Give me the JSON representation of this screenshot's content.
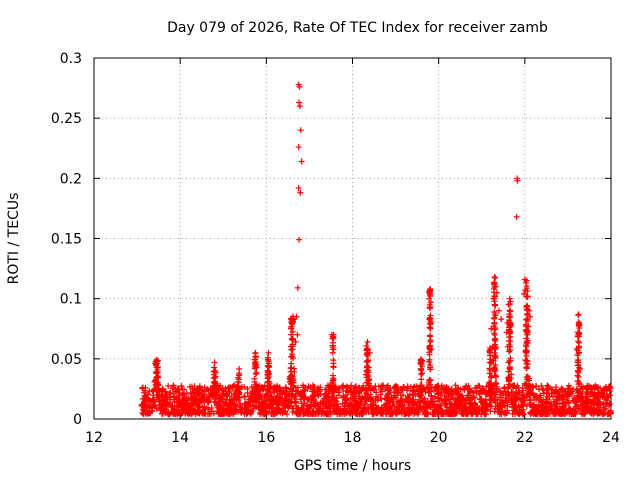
{
  "chart_data": {
    "type": "scatter",
    "title": "Day 079 of 2026, Rate Of TEC Index for receiver zamb",
    "xlabel": "GPS time / hours",
    "ylabel": "ROTI / TECUs",
    "xlim": [
      12,
      24
    ],
    "ylim": [
      0,
      0.3
    ],
    "x_ticks": [
      12,
      14,
      16,
      18,
      20,
      22,
      24
    ],
    "x_tick_labels": [
      "12",
      "14",
      "16",
      "18",
      "20",
      "22",
      "24"
    ],
    "y_ticks": [
      0,
      0.05,
      0.1,
      0.15,
      0.2,
      0.25,
      0.3
    ],
    "y_tick_labels": [
      "0",
      "0.05",
      "0.1",
      "0.15",
      "0.2",
      "0.25",
      "0.3"
    ],
    "grid": true,
    "marker": "+",
    "color": "#ff0000",
    "series": [
      {
        "name": "ROTI",
        "baseline": {
          "x_start": 13.1,
          "x_end": 24.0,
          "y_min": 0.004,
          "y_max": 0.028,
          "samples": 2600
        },
        "bursts": [
          {
            "x": 13.45,
            "width": 0.1,
            "peak": 0.049
          },
          {
            "x": 14.8,
            "width": 0.06,
            "peak": 0.047
          },
          {
            "x": 15.35,
            "width": 0.05,
            "peak": 0.042
          },
          {
            "x": 15.75,
            "width": 0.06,
            "peak": 0.055
          },
          {
            "x": 16.05,
            "width": 0.05,
            "peak": 0.055
          },
          {
            "x": 16.6,
            "width": 0.08,
            "peak": 0.087
          },
          {
            "x": 17.55,
            "width": 0.03,
            "peak": 0.07
          },
          {
            "x": 18.35,
            "width": 0.07,
            "peak": 0.064
          },
          {
            "x": 19.6,
            "width": 0.06,
            "peak": 0.05
          },
          {
            "x": 19.8,
            "width": 0.04,
            "peak": 0.108
          },
          {
            "x": 21.2,
            "width": 0.06,
            "peak": 0.06
          },
          {
            "x": 21.3,
            "width": 0.05,
            "peak": 0.118
          },
          {
            "x": 21.65,
            "width": 0.05,
            "peak": 0.1
          },
          {
            "x": 22.05,
            "width": 0.06,
            "peak": 0.116
          },
          {
            "x": 23.25,
            "width": 0.05,
            "peak": 0.087
          },
          {
            "x": 23.45,
            "width": 0.04,
            "peak": 0.03
          }
        ],
        "points": [
          {
            "x": 16.75,
            "y": 0.278
          },
          {
            "x": 16.77,
            "y": 0.276
          },
          {
            "x": 16.76,
            "y": 0.263
          },
          {
            "x": 16.78,
            "y": 0.26
          },
          {
            "x": 16.8,
            "y": 0.24
          },
          {
            "x": 16.75,
            "y": 0.226
          },
          {
            "x": 16.82,
            "y": 0.214
          },
          {
            "x": 16.75,
            "y": 0.192
          },
          {
            "x": 16.79,
            "y": 0.188
          },
          {
            "x": 16.76,
            "y": 0.149
          },
          {
            "x": 16.73,
            "y": 0.109
          },
          {
            "x": 16.7,
            "y": 0.085
          },
          {
            "x": 16.72,
            "y": 0.07
          },
          {
            "x": 16.68,
            "y": 0.064
          },
          {
            "x": 17.52,
            "y": 0.07
          },
          {
            "x": 17.56,
            "y": 0.07
          },
          {
            "x": 19.8,
            "y": 0.108
          },
          {
            "x": 19.78,
            "y": 0.1
          },
          {
            "x": 19.82,
            "y": 0.097
          },
          {
            "x": 19.81,
            "y": 0.086
          },
          {
            "x": 19.79,
            "y": 0.076
          },
          {
            "x": 19.83,
            "y": 0.058
          },
          {
            "x": 21.3,
            "y": 0.118
          },
          {
            "x": 21.32,
            "y": 0.11
          },
          {
            "x": 21.35,
            "y": 0.105
          },
          {
            "x": 21.28,
            "y": 0.1
          },
          {
            "x": 21.4,
            "y": 0.09
          },
          {
            "x": 21.45,
            "y": 0.083
          },
          {
            "x": 21.22,
            "y": 0.075
          },
          {
            "x": 21.25,
            "y": 0.06
          },
          {
            "x": 21.65,
            "y": 0.1
          },
          {
            "x": 21.62,
            "y": 0.095
          },
          {
            "x": 21.6,
            "y": 0.08
          },
          {
            "x": 21.58,
            "y": 0.072
          },
          {
            "x": 21.6,
            "y": 0.06
          },
          {
            "x": 21.62,
            "y": 0.047
          },
          {
            "x": 21.82,
            "y": 0.2
          },
          {
            "x": 21.83,
            "y": 0.198
          },
          {
            "x": 21.81,
            "y": 0.168
          },
          {
            "x": 22.0,
            "y": 0.116
          },
          {
            "x": 22.01,
            "y": 0.107
          },
          {
            "x": 21.98,
            "y": 0.104
          },
          {
            "x": 22.1,
            "y": 0.09
          },
          {
            "x": 22.12,
            "y": 0.085
          },
          {
            "x": 22.08,
            "y": 0.077
          },
          {
            "x": 22.06,
            "y": 0.07
          },
          {
            "x": 22.04,
            "y": 0.06
          },
          {
            "x": 23.25,
            "y": 0.087
          },
          {
            "x": 23.27,
            "y": 0.078
          },
          {
            "x": 23.23,
            "y": 0.072
          },
          {
            "x": 23.2,
            "y": 0.058
          },
          {
            "x": 23.22,
            "y": 0.053
          },
          {
            "x": 18.35,
            "y": 0.064
          },
          {
            "x": 18.4,
            "y": 0.055
          },
          {
            "x": 13.45,
            "y": 0.049
          },
          {
            "x": 14.8,
            "y": 0.047
          },
          {
            "x": 15.75,
            "y": 0.055
          },
          {
            "x": 16.05,
            "y": 0.055
          }
        ]
      }
    ]
  }
}
